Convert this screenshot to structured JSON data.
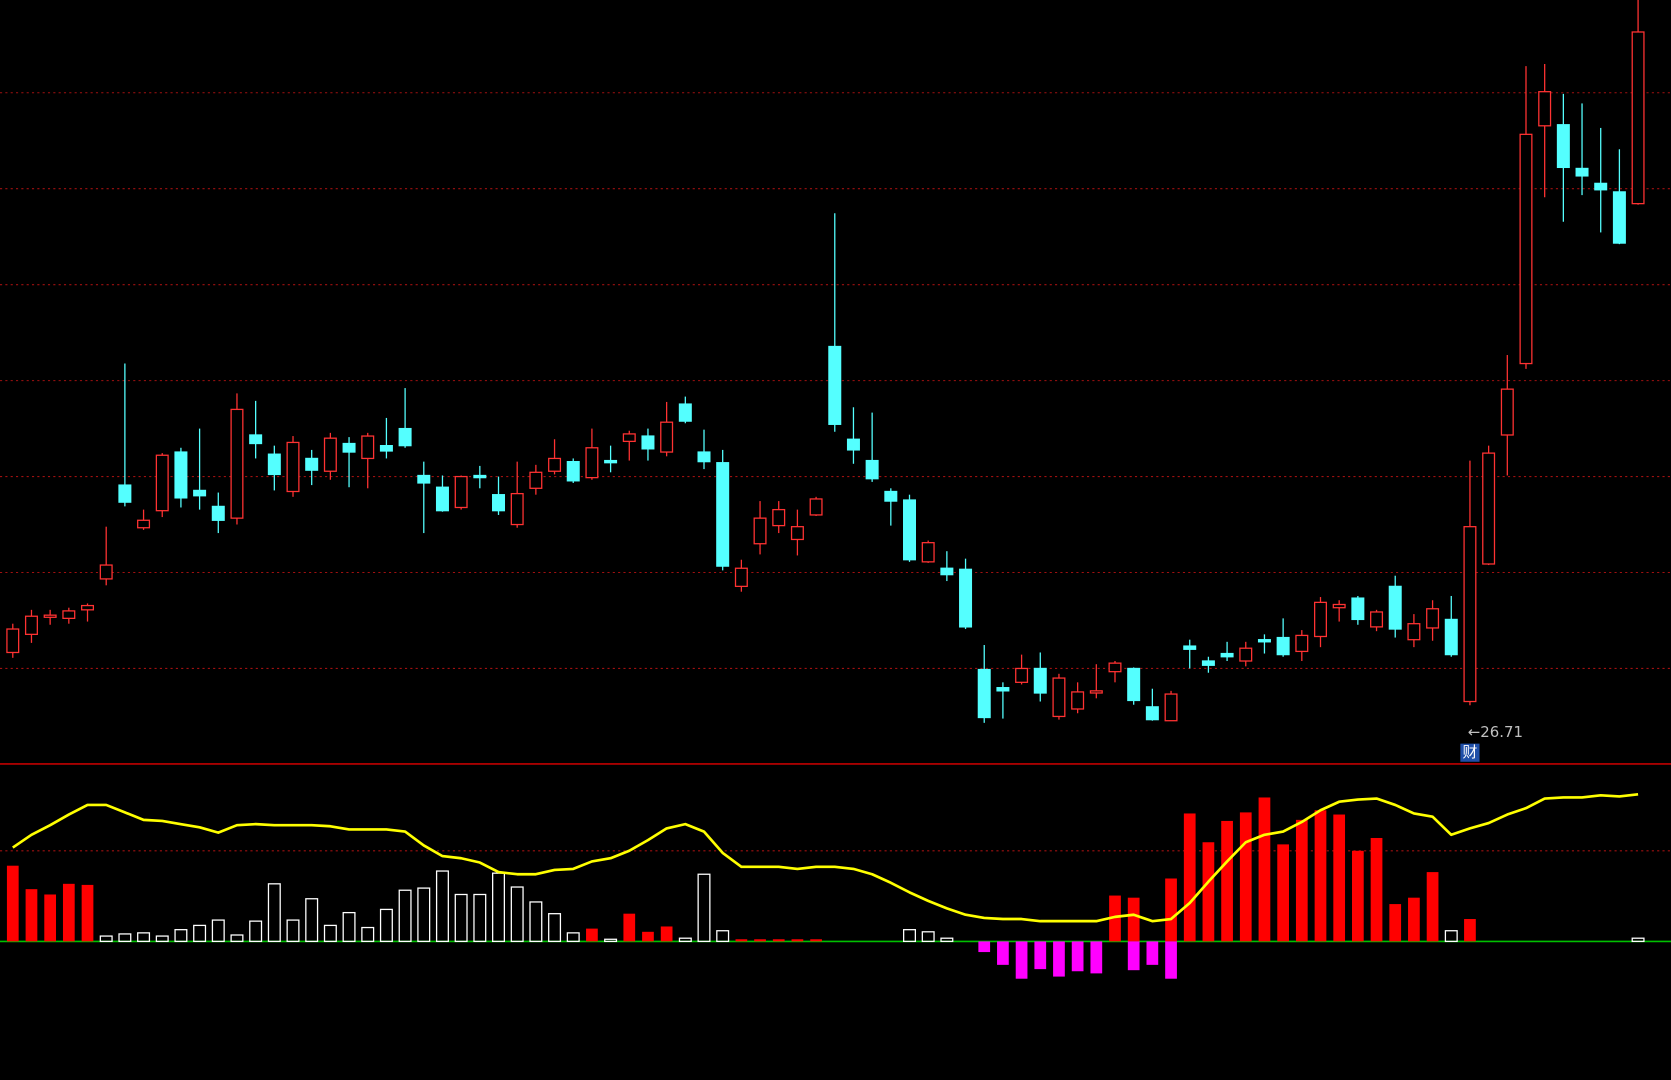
{
  "chart_data": [
    {
      "type": "candlestick",
      "open": [
        27.7,
        28.04,
        28.36,
        28.34,
        28.5,
        29.08,
        30.84,
        30.04,
        30.36,
        31.46,
        30.74,
        30.44,
        30.22,
        31.78,
        31.42,
        30.72,
        31.34,
        31.1,
        31.62,
        31.34,
        31.58,
        31.9,
        31.02,
        30.8,
        30.42,
        31.02,
        30.66,
        30.1,
        30.78,
        31.1,
        31.28,
        30.98,
        31.3,
        31.66,
        31.76,
        31.46,
        32.36,
        31.46,
        31.26,
        28.94,
        29.74,
        30.08,
        29.82,
        30.28,
        33.44,
        31.7,
        31.3,
        30.72,
        30.56,
        29.4,
        29.28,
        29.26,
        27.38,
        27.04,
        27.14,
        27.4,
        26.5,
        26.64,
        26.94,
        27.34,
        27.4,
        26.68,
        26.42,
        27.82,
        27.54,
        27.68,
        27.54,
        27.94,
        27.98,
        27.72,
        28.0,
        28.54,
        28.72,
        28.18,
        28.94,
        27.94,
        28.16,
        28.32,
        26.78,
        29.36,
        31.78,
        33.12,
        37.58,
        37.6,
        36.78,
        36.5,
        36.34,
        36.12
      ],
      "high": [
        28.24,
        28.5,
        28.5,
        28.54,
        28.62,
        30.06,
        33.12,
        30.38,
        31.44,
        31.54,
        31.9,
        30.7,
        32.56,
        32.42,
        31.58,
        31.76,
        31.5,
        31.82,
        31.74,
        31.82,
        32.1,
        32.66,
        31.28,
        31.02,
        31.02,
        31.2,
        31.0,
        31.28,
        31.22,
        31.7,
        31.34,
        31.9,
        31.58,
        31.86,
        31.9,
        32.4,
        32.5,
        31.88,
        31.5,
        29.44,
        30.54,
        30.54,
        30.38,
        30.62,
        35.94,
        32.3,
        32.2,
        30.78,
        30.66,
        29.8,
        29.6,
        29.46,
        27.84,
        27.14,
        27.66,
        27.7,
        27.3,
        27.14,
        27.48,
        27.54,
        27.42,
        27.02,
        26.98,
        27.94,
        27.62,
        27.9,
        27.9,
        28.04,
        28.34,
        28.12,
        28.74,
        28.68,
        28.76,
        28.5,
        29.14,
        28.42,
        28.68,
        28.76,
        31.3,
        31.58,
        33.28,
        38.7,
        38.74,
        38.18,
        38.0,
        37.54,
        37.14,
        39.94
      ],
      "low": [
        27.6,
        27.88,
        28.22,
        28.24,
        28.28,
        28.96,
        30.44,
        30.0,
        30.24,
        30.42,
        30.38,
        29.94,
        30.1,
        31.34,
        30.74,
        30.62,
        30.84,
        30.94,
        30.8,
        30.78,
        31.34,
        31.54,
        29.94,
        30.34,
        30.38,
        30.78,
        30.28,
        30.04,
        30.66,
        31.04,
        30.88,
        30.94,
        31.08,
        31.3,
        31.3,
        31.38,
        32.0,
        31.14,
        29.24,
        28.84,
        29.54,
        29.94,
        29.52,
        30.26,
        31.84,
        31.24,
        30.9,
        30.08,
        29.4,
        29.38,
        29.04,
        28.14,
        26.38,
        26.46,
        27.1,
        26.78,
        26.44,
        26.56,
        26.84,
        27.14,
        26.72,
        26.42,
        26.42,
        27.4,
        27.32,
        27.54,
        27.44,
        27.68,
        27.62,
        27.54,
        27.8,
        28.28,
        28.22,
        28.1,
        27.98,
        27.8,
        27.92,
        27.62,
        26.71,
        29.34,
        31.02,
        33.02,
        36.24,
        35.78,
        36.28,
        35.58,
        35.36,
        36.1
      ],
      "close": [
        28.14,
        28.38,
        28.4,
        28.48,
        28.58,
        29.34,
        30.52,
        30.18,
        31.4,
        30.6,
        30.64,
        30.18,
        32.26,
        31.62,
        31.04,
        31.64,
        31.12,
        31.72,
        31.46,
        31.76,
        31.48,
        31.58,
        30.88,
        30.36,
        31.0,
        30.98,
        30.36,
        30.68,
        31.08,
        31.34,
        30.92,
        31.54,
        31.26,
        31.8,
        31.52,
        32.02,
        32.04,
        31.28,
        29.32,
        29.28,
        30.22,
        30.38,
        30.06,
        30.58,
        31.98,
        31.5,
        30.96,
        30.54,
        29.44,
        29.76,
        29.16,
        28.18,
        26.48,
        26.98,
        27.4,
        26.94,
        27.22,
        26.96,
        26.98,
        27.5,
        26.8,
        26.44,
        26.92,
        27.76,
        27.46,
        27.62,
        27.78,
        27.9,
        27.66,
        28.02,
        28.64,
        28.6,
        28.32,
        28.46,
        28.14,
        28.24,
        28.52,
        27.66,
        30.06,
        31.44,
        32.64,
        37.42,
        38.22,
        36.8,
        36.64,
        36.38,
        35.38,
        39.34
      ],
      "up_color": "#ff3232",
      "down_color": "#54ffff",
      "ylim": [
        25.62,
        39.94
      ],
      "yticks": [
        27.4,
        29.2,
        31.0,
        32.8,
        34.6,
        36.4,
        38.2
      ],
      "grid": true,
      "grid_color": "#a01010",
      "annotation": {
        "value": 26.71,
        "label": "←26.71"
      },
      "badge": "财"
    },
    {
      "type": "bar",
      "ylim": [
        -13.0,
        16.7
      ],
      "yticks": [
        0,
        8.5
      ],
      "grid": true,
      "grid_color": "#a01010",
      "zero_line_color": "#00c000",
      "series": [
        {
          "kind": "bar",
          "values": [
            7.1,
            4.9,
            4.4,
            5.4,
            5.3,
            0.5,
            0.7,
            0.8,
            0.5,
            1.1,
            1.5,
            2.0,
            0.6,
            1.9,
            5.4,
            2.0,
            4.0,
            1.5,
            2.7,
            1.3,
            3.0,
            4.8,
            5.0,
            6.6,
            4.4,
            4.4,
            6.4,
            5.1,
            3.7,
            2.6,
            0.8,
            1.2,
            0.2,
            2.6,
            0.9,
            1.4,
            0.3,
            6.3,
            1.0,
            0.2,
            0.2,
            0.2,
            0.2,
            0.2,
            0,
            0,
            0,
            0,
            1.1,
            0.9,
            0.3,
            0,
            0,
            0,
            0,
            0,
            0,
            0,
            0,
            4.3,
            4.1,
            0,
            5.9,
            12.0,
            9.3,
            11.3,
            12.1,
            13.5,
            9.1,
            11.4,
            12.3,
            11.9,
            8.5,
            9.7,
            3.5,
            4.1,
            6.5,
            1.0,
            2.1,
            0,
            0,
            0,
            0,
            0,
            0,
            0,
            0,
            0.3
          ],
          "colors": [
            "#ff0000",
            "#ff0000",
            "#ff0000",
            "#ff0000",
            "#ff0000",
            "#ffffff",
            "#ffffff",
            "#ffffff",
            "#ffffff",
            "#ffffff",
            "#ffffff",
            "#ffffff",
            "#ffffff",
            "#ffffff",
            "#ffffff",
            "#ffffff",
            "#ffffff",
            "#ffffff",
            "#ffffff",
            "#ffffff",
            "#ffffff",
            "#ffffff",
            "#ffffff",
            "#ffffff",
            "#ffffff",
            "#ffffff",
            "#ffffff",
            "#ffffff",
            "#ffffff",
            "#ffffff",
            "#ffffff",
            "#ff0000",
            "#ffffff",
            "#ff0000",
            "#ff0000",
            "#ff0000",
            "#ffffff",
            "#ffffff",
            "#ffffff",
            "#ff0000",
            "#ff0000",
            "#ff0000",
            "#ff0000",
            "#ff0000",
            "#ff0000",
            "#ff0000",
            "#ff0000",
            "#ff0000",
            "#ffffff",
            "#ffffff",
            "#ffffff",
            "#ff0000",
            "#ff0000",
            "#ff0000",
            "#ff0000",
            "#ff0000",
            "#ff0000",
            "#ff0000",
            "#ff0000",
            "#ff0000",
            "#ff0000",
            "#ff0000",
            "#ff0000",
            "#ff0000",
            "#ff0000",
            "#ff0000",
            "#ff0000",
            "#ff0000",
            "#ff0000",
            "#ff0000",
            "#ff0000",
            "#ff0000",
            "#ff0000",
            "#ff0000",
            "#ff0000",
            "#ff0000",
            "#ff0000",
            "#ffffff",
            "#ff0000",
            "#ff0000",
            "#ff0000",
            "#ff0000",
            "#ff0000",
            "#ff0000",
            "#ff0000",
            "#ff0000",
            "#ff0000",
            "#ffffff"
          ]
        },
        {
          "kind": "bar",
          "color": "#ff00ff",
          "values": [
            null,
            null,
            null,
            null,
            null,
            null,
            null,
            null,
            null,
            null,
            null,
            null,
            null,
            null,
            null,
            null,
            null,
            null,
            null,
            null,
            null,
            null,
            null,
            null,
            null,
            null,
            null,
            null,
            null,
            null,
            null,
            null,
            null,
            null,
            null,
            null,
            null,
            null,
            null,
            null,
            null,
            null,
            null,
            null,
            null,
            null,
            null,
            null,
            null,
            null,
            null,
            null,
            -1.0,
            -2.2,
            -3.5,
            -2.6,
            -3.3,
            -2.8,
            -3.0,
            null,
            -2.7,
            -2.2,
            -3.5,
            null,
            null,
            null,
            null,
            null,
            null,
            null,
            null,
            null,
            null,
            null,
            null,
            null,
            null,
            null,
            null,
            null,
            null,
            null,
            null,
            null,
            null,
            null,
            null,
            null
          ]
        },
        {
          "kind": "line",
          "color": "#ffff00",
          "values": [
            8.8,
            10.0,
            10.9,
            11.9,
            12.8,
            12.8,
            12.1,
            11.4,
            11.3,
            11.0,
            10.7,
            10.2,
            10.9,
            11.0,
            10.9,
            10.9,
            10.9,
            10.8,
            10.5,
            10.5,
            10.5,
            10.3,
            9.0,
            8.0,
            7.8,
            7.4,
            6.5,
            6.3,
            6.3,
            6.7,
            6.8,
            7.5,
            7.8,
            8.5,
            9.5,
            10.6,
            11.0,
            10.3,
            8.3,
            7.0,
            7.0,
            7.0,
            6.8,
            7.0,
            7.0,
            6.8,
            6.3,
            5.5,
            4.6,
            3.8,
            3.1,
            2.5,
            2.2,
            2.1,
            2.1,
            1.9,
            1.9,
            1.9,
            1.9,
            2.3,
            2.5,
            1.9,
            2.1,
            3.6,
            5.6,
            7.5,
            9.3,
            10.0,
            10.3,
            11.2,
            12.3,
            13.1,
            13.3,
            13.4,
            12.8,
            12.0,
            11.7,
            10.0,
            10.6,
            11.1,
            11.9,
            12.5,
            13.4,
            13.5,
            13.5,
            13.7,
            13.6,
            13.8
          ]
        }
      ]
    }
  ]
}
